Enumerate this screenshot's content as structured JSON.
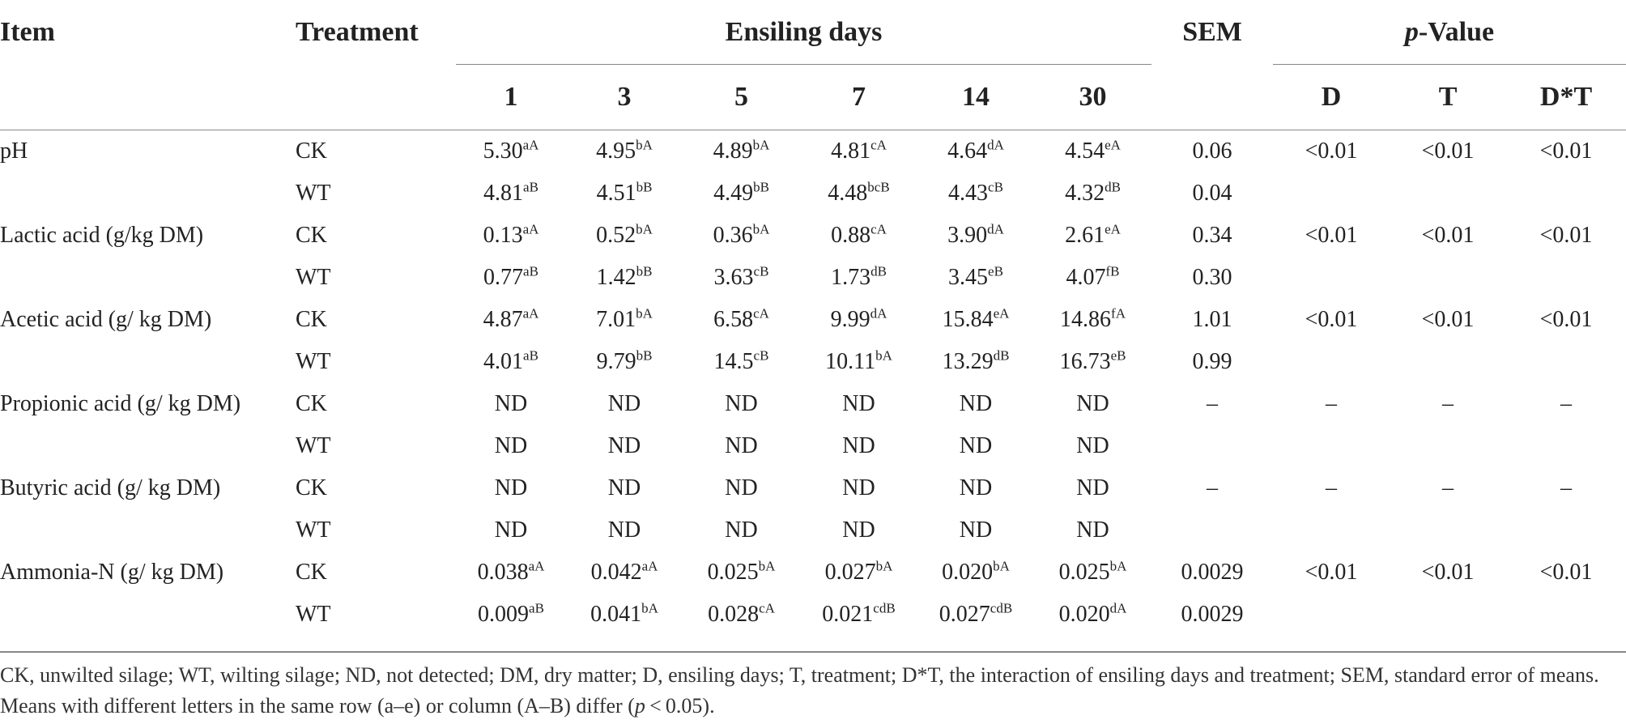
{
  "header": {
    "item": "Item",
    "treatment": "Treatment",
    "ensiling_days": "Ensiling days",
    "sem": "SEM",
    "p_value_italic": "p",
    "p_value_rest": "-Value",
    "days": [
      "1",
      "3",
      "5",
      "7",
      "14",
      "30"
    ],
    "p_cols": [
      "D",
      "T",
      "D*T"
    ]
  },
  "rows": [
    {
      "item": "pH",
      "treatment": "CK",
      "values": [
        [
          "5.30",
          "aA"
        ],
        [
          "4.95",
          "bA"
        ],
        [
          "4.89",
          "bA"
        ],
        [
          "4.81",
          "cA"
        ],
        [
          "4.64",
          "dA"
        ],
        [
          "4.54",
          "eA"
        ]
      ],
      "sem": "0.06",
      "p": [
        "<0.01",
        "<0.01",
        "<0.01"
      ]
    },
    {
      "item": "",
      "treatment": "WT",
      "values": [
        [
          "4.81",
          "aB"
        ],
        [
          "4.51",
          "bB"
        ],
        [
          "4.49",
          "bB"
        ],
        [
          "4.48",
          "bcB"
        ],
        [
          "4.43",
          "cB"
        ],
        [
          "4.32",
          "dB"
        ]
      ],
      "sem": "0.04",
      "p": [
        "",
        "",
        ""
      ]
    },
    {
      "item": "Lactic acid (g/kg DM)",
      "treatment": "CK",
      "values": [
        [
          "0.13",
          "aA"
        ],
        [
          "0.52",
          "bA"
        ],
        [
          "0.36",
          "bA"
        ],
        [
          "0.88",
          "cA"
        ],
        [
          "3.90",
          "dA"
        ],
        [
          "2.61",
          "eA"
        ]
      ],
      "sem": "0.34",
      "p": [
        "<0.01",
        "<0.01",
        "<0.01"
      ]
    },
    {
      "item": "",
      "treatment": "WT",
      "values": [
        [
          "0.77",
          "aB"
        ],
        [
          "1.42",
          "bB"
        ],
        [
          "3.63",
          "cB"
        ],
        [
          "1.73",
          "dB"
        ],
        [
          "3.45",
          "eB"
        ],
        [
          "4.07",
          "fB"
        ]
      ],
      "sem": "0.30",
      "p": [
        "",
        "",
        ""
      ]
    },
    {
      "item": "Acetic acid (g/ kg DM)",
      "treatment": "CK",
      "values": [
        [
          "4.87",
          "aA"
        ],
        [
          "7.01",
          "bA"
        ],
        [
          "6.58",
          "cA"
        ],
        [
          "9.99",
          "dA"
        ],
        [
          "15.84",
          "eA"
        ],
        [
          "14.86",
          "fA"
        ]
      ],
      "sem": "1.01",
      "p": [
        "<0.01",
        "<0.01",
        "<0.01"
      ]
    },
    {
      "item": "",
      "treatment": "WT",
      "values": [
        [
          "4.01",
          "aB"
        ],
        [
          "9.79",
          "bB"
        ],
        [
          "14.5",
          "cB"
        ],
        [
          "10.11",
          "bA"
        ],
        [
          "13.29",
          "dB"
        ],
        [
          "16.73",
          "eB"
        ]
      ],
      "sem": "0.99",
      "p": [
        "",
        "",
        ""
      ]
    },
    {
      "item": "Propionic acid (g/ kg DM)",
      "treatment": "CK",
      "values": [
        [
          "ND",
          ""
        ],
        [
          "ND",
          ""
        ],
        [
          "ND",
          ""
        ],
        [
          "ND",
          ""
        ],
        [
          "ND",
          ""
        ],
        [
          "ND",
          ""
        ]
      ],
      "sem": "–",
      "p": [
        "–",
        "–",
        "–"
      ]
    },
    {
      "item": "",
      "treatment": "WT",
      "values": [
        [
          "ND",
          ""
        ],
        [
          "ND",
          ""
        ],
        [
          "ND",
          ""
        ],
        [
          "ND",
          ""
        ],
        [
          "ND",
          ""
        ],
        [
          "ND",
          ""
        ]
      ],
      "sem": "",
      "p": [
        "",
        "",
        ""
      ]
    },
    {
      "item": "Butyric acid (g/ kg DM)",
      "treatment": "CK",
      "values": [
        [
          "ND",
          ""
        ],
        [
          "ND",
          ""
        ],
        [
          "ND",
          ""
        ],
        [
          "ND",
          ""
        ],
        [
          "ND",
          ""
        ],
        [
          "ND",
          ""
        ]
      ],
      "sem": "–",
      "p": [
        "–",
        "–",
        "–"
      ]
    },
    {
      "item": "",
      "treatment": "WT",
      "values": [
        [
          "ND",
          ""
        ],
        [
          "ND",
          ""
        ],
        [
          "ND",
          ""
        ],
        [
          "ND",
          ""
        ],
        [
          "ND",
          ""
        ],
        [
          "ND",
          ""
        ]
      ],
      "sem": "",
      "p": [
        "",
        "",
        ""
      ]
    },
    {
      "item": "Ammonia-N (g/ kg DM)",
      "treatment": "CK",
      "values": [
        [
          "0.038",
          "aA"
        ],
        [
          "0.042",
          "aA"
        ],
        [
          "0.025",
          "bA"
        ],
        [
          "0.027",
          "bA"
        ],
        [
          "0.020",
          "bA"
        ],
        [
          "0.025",
          "bA"
        ]
      ],
      "sem": "0.0029",
      "p": [
        "<0.01",
        "<0.01",
        "<0.01"
      ]
    },
    {
      "item": "",
      "treatment": "WT",
      "values": [
        [
          "0.009",
          "aB"
        ],
        [
          "0.041",
          "bA"
        ],
        [
          "0.028",
          "cA"
        ],
        [
          "0.021",
          "cdB"
        ],
        [
          "0.027",
          "cdB"
        ],
        [
          "0.020",
          "dA"
        ]
      ],
      "sem": "0.0029",
      "p": [
        "",
        "",
        ""
      ]
    }
  ],
  "footnote": {
    "text_before_p": "CK, unwilted silage; WT, wilting silage; ND, not detected; DM, dry matter; D, ensiling days; T, treatment; D*T, the interaction of ensiling days and treatment; SEM, standard error of means. Means with different letters in the same row (a–e) or column (A–B) differ (",
    "p_italic": "p",
    "text_after_p": " < 0.05)."
  }
}
